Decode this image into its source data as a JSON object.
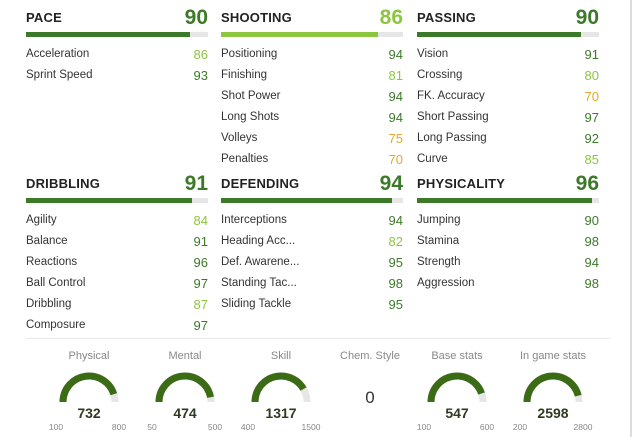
{
  "colors": {
    "score_high": "#3c7a2a",
    "score_mid": "#8cc63f",
    "score_low": "#e3a92a",
    "bar_track": "#e6e6e6",
    "gauge_fill": "#3b6b14",
    "gauge_track": "#e6e6e6"
  },
  "categories": [
    {
      "name": "PACE",
      "score": "90",
      "level": 0.9,
      "color": "#3c7a2a",
      "stats": [
        {
          "label": "Acceleration",
          "value": "86",
          "color": "#8cc63f"
        },
        {
          "label": "Sprint Speed",
          "value": "93",
          "color": "#3c7a2a"
        }
      ]
    },
    {
      "name": "SHOOTING",
      "score": "86",
      "level": 0.86,
      "color": "#8cc63f",
      "stats": [
        {
          "label": "Positioning",
          "value": "94",
          "color": "#3c7a2a"
        },
        {
          "label": "Finishing",
          "value": "81",
          "color": "#8cc63f"
        },
        {
          "label": "Shot Power",
          "value": "94",
          "color": "#3c7a2a"
        },
        {
          "label": "Long Shots",
          "value": "94",
          "color": "#3c7a2a"
        },
        {
          "label": "Volleys",
          "value": "75",
          "color": "#e3a92a"
        },
        {
          "label": "Penalties",
          "value": "70",
          "color": "#e3a92a"
        }
      ]
    },
    {
      "name": "PASSING",
      "score": "90",
      "level": 0.9,
      "color": "#3c7a2a",
      "stats": [
        {
          "label": "Vision",
          "value": "91",
          "color": "#3c7a2a"
        },
        {
          "label": "Crossing",
          "value": "80",
          "color": "#8cc63f"
        },
        {
          "label": "FK. Accuracy",
          "value": "70",
          "color": "#e3a92a"
        },
        {
          "label": "Short Passing",
          "value": "97",
          "color": "#3c7a2a"
        },
        {
          "label": "Long Passing",
          "value": "92",
          "color": "#3c7a2a"
        },
        {
          "label": "Curve",
          "value": "85",
          "color": "#8cc63f"
        }
      ]
    },
    {
      "name": "DRIBBLING",
      "score": "91",
      "level": 0.91,
      "color": "#3c7a2a",
      "stats": [
        {
          "label": "Agility",
          "value": "84",
          "color": "#8cc63f"
        },
        {
          "label": "Balance",
          "value": "91",
          "color": "#3c7a2a"
        },
        {
          "label": "Reactions",
          "value": "96",
          "color": "#3c7a2a"
        },
        {
          "label": "Ball Control",
          "value": "97",
          "color": "#3c7a2a"
        },
        {
          "label": "Dribbling",
          "value": "87",
          "color": "#8cc63f"
        },
        {
          "label": "Composure",
          "value": "97",
          "color": "#3c7a2a"
        }
      ]
    },
    {
      "name": "DEFENDING",
      "score": "94",
      "level": 0.94,
      "color": "#3c7a2a",
      "stats": [
        {
          "label": "Interceptions",
          "value": "94",
          "color": "#3c7a2a"
        },
        {
          "label": "Heading Acc...",
          "value": "82",
          "color": "#8cc63f"
        },
        {
          "label": "Def. Awarene...",
          "value": "95",
          "color": "#3c7a2a"
        },
        {
          "label": "Standing Tac...",
          "value": "98",
          "color": "#3c7a2a"
        },
        {
          "label": "Sliding Tackle",
          "value": "95",
          "color": "#3c7a2a"
        }
      ]
    },
    {
      "name": "PHYSICALITY",
      "score": "96",
      "level": 0.96,
      "color": "#3c7a2a",
      "stats": [
        {
          "label": "Jumping",
          "value": "90",
          "color": "#3c7a2a"
        },
        {
          "label": "Stamina",
          "value": "98",
          "color": "#3c7a2a"
        },
        {
          "label": "Strength",
          "value": "94",
          "color": "#3c7a2a"
        },
        {
          "label": "Aggression",
          "value": "98",
          "color": "#3c7a2a"
        }
      ]
    }
  ],
  "summary": [
    {
      "title": "Physical",
      "value": "732",
      "min": "100",
      "max": "800",
      "level": 0.903
    },
    {
      "title": "Mental",
      "value": "474",
      "min": "50",
      "max": "500",
      "level": 0.942
    },
    {
      "title": "Skill",
      "value": "1317",
      "min": "400",
      "max": "1500",
      "level": 0.834
    },
    {
      "title": "Chem. Style",
      "value": "0"
    },
    {
      "title": "Base stats",
      "value": "547",
      "min": "100",
      "max": "600",
      "level": 0.894
    },
    {
      "title": "In game stats",
      "value": "2598",
      "min": "200",
      "max": "2800",
      "level": 0.922
    }
  ]
}
